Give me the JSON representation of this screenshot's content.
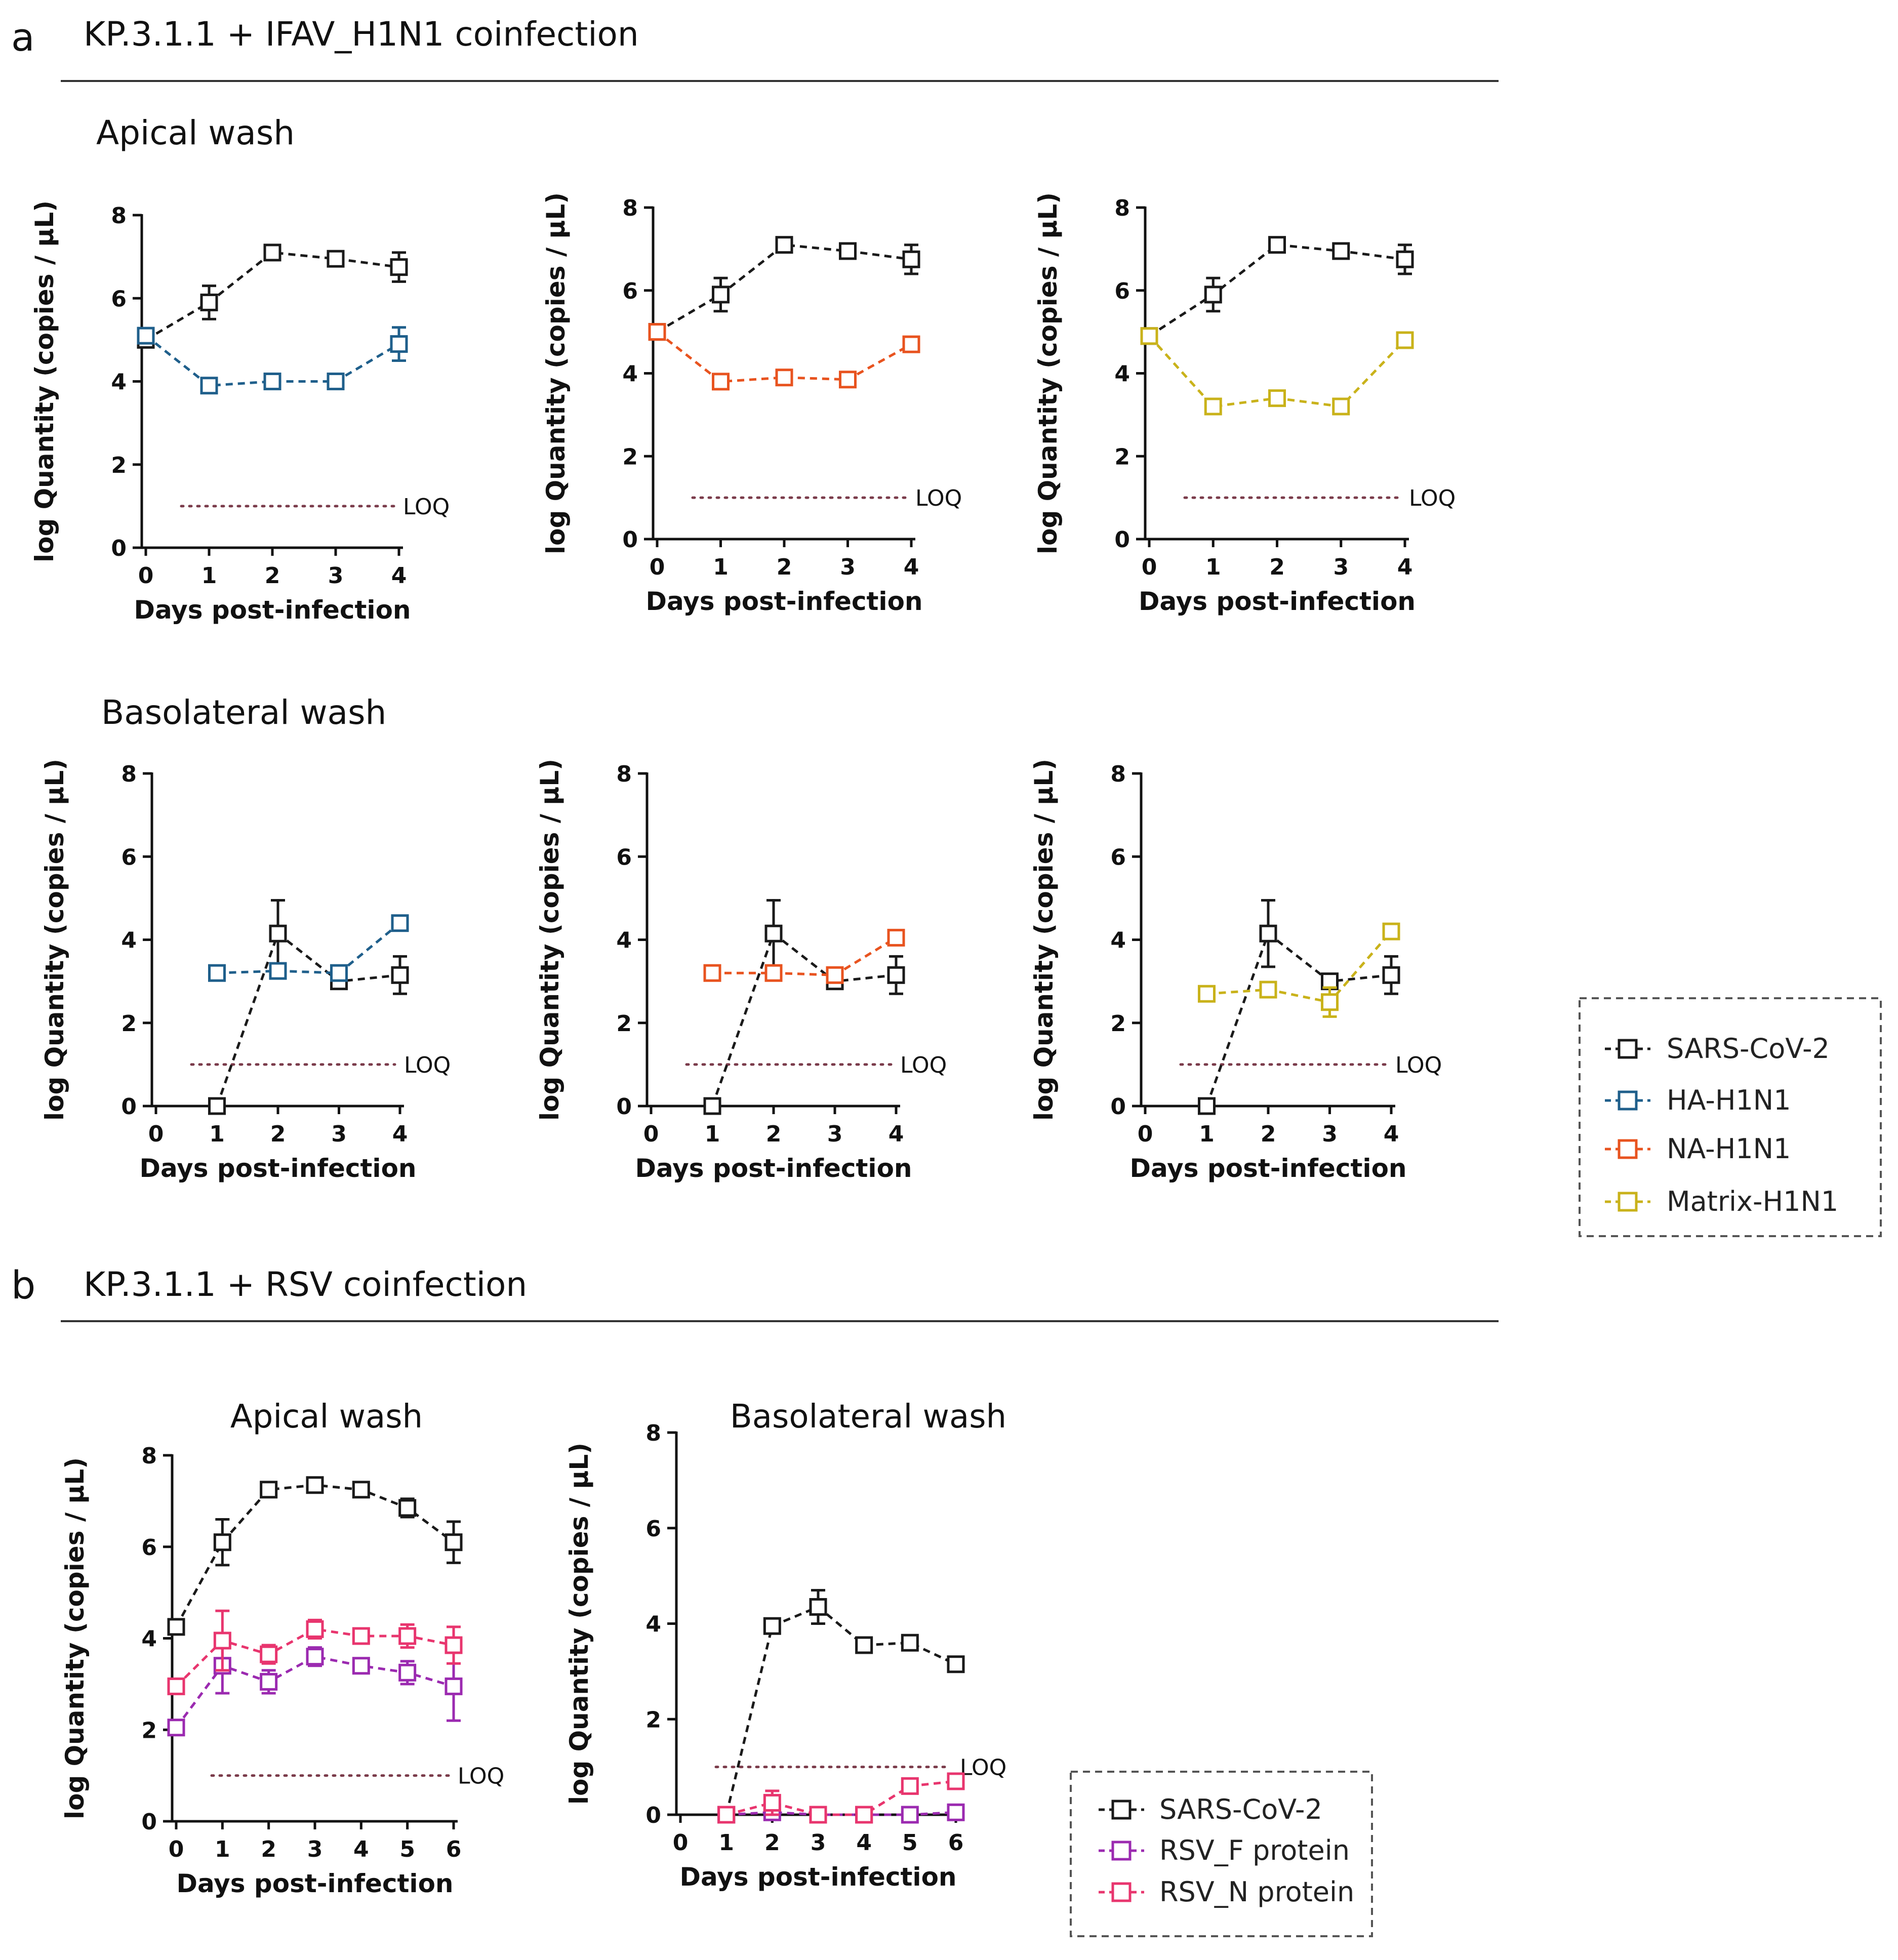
{
  "panels": {
    "a": {
      "letter": "a",
      "title": "KP.3.1.1 + IFAV_H1N1 coinfection",
      "apical_label": "Apical wash",
      "basolateral_label": "Basolateral wash"
    },
    "b": {
      "letter": "b",
      "title": "KP.3.1.1 + RSV coinfection"
    }
  },
  "legends": {
    "a": [
      {
        "label": "SARS-CoV-2",
        "color": "#1a1a1a"
      },
      {
        "label": "HA-H1N1",
        "color": "#1f5f8b"
      },
      {
        "label": "NA-H1N1",
        "color": "#e8531f"
      },
      {
        "label": "Matrix-H1N1",
        "color": "#c9b21a"
      }
    ],
    "b": [
      {
        "label": "SARS-CoV-2",
        "color": "#1a1a1a"
      },
      {
        "label": "RSV_F protein",
        "color": "#9b2ab0"
      },
      {
        "label": "RSV_N protein",
        "color": "#e8356e"
      }
    ]
  },
  "chart_data": [
    {
      "id": "a-apical-ha",
      "type": "line",
      "title": "",
      "xlabel": "Days post-infection",
      "ylabel": "log Quantity (copies / µL)",
      "xlim": [
        0,
        4
      ],
      "ylim": [
        0,
        8
      ],
      "xticks": [
        "0",
        "1",
        "2",
        "3",
        "4"
      ],
      "yticks": [
        "0",
        "2",
        "4",
        "6",
        "8"
      ],
      "loq": 1,
      "loq_label": "LOQ",
      "series": [
        {
          "name": "SARS-CoV-2",
          "color": "#1a1a1a",
          "x": [
            0,
            1,
            2,
            3,
            4
          ],
          "y": [
            5.0,
            5.9,
            7.1,
            6.95,
            6.75
          ],
          "err": [
            0.15,
            0.4,
            0.1,
            0.1,
            0.35
          ]
        },
        {
          "name": "HA-H1N1",
          "color": "#1f5f8b",
          "x": [
            0,
            1,
            2,
            3,
            4
          ],
          "y": [
            5.1,
            3.9,
            4.0,
            4.0,
            4.9
          ],
          "err": [
            0.1,
            0.1,
            0.05,
            0.05,
            0.4
          ]
        }
      ]
    },
    {
      "id": "a-apical-na",
      "type": "line",
      "title": "",
      "xlabel": "Days post-infection",
      "ylabel": "log Quantity (copies / µL)",
      "xlim": [
        0,
        4
      ],
      "ylim": [
        0,
        8
      ],
      "xticks": [
        "0",
        "1",
        "2",
        "3",
        "4"
      ],
      "yticks": [
        "0",
        "2",
        "4",
        "6",
        "8"
      ],
      "loq": 1,
      "loq_label": "LOQ",
      "series": [
        {
          "name": "SARS-CoV-2",
          "color": "#1a1a1a",
          "x": [
            0,
            1,
            2,
            3,
            4
          ],
          "y": [
            5.0,
            5.9,
            7.1,
            6.95,
            6.75
          ],
          "err": [
            0.15,
            0.4,
            0.1,
            0.1,
            0.35
          ]
        },
        {
          "name": "NA-H1N1",
          "color": "#e8531f",
          "x": [
            0,
            1,
            2,
            3,
            4
          ],
          "y": [
            5.0,
            3.8,
            3.9,
            3.85,
            4.7
          ],
          "err": [
            0.1,
            0.1,
            0.05,
            0.05,
            0.1
          ]
        }
      ]
    },
    {
      "id": "a-apical-matrix",
      "type": "line",
      "title": "",
      "xlabel": "Days post-infection",
      "ylabel": "log Quantity (copies / µL)",
      "xlim": [
        0,
        4
      ],
      "ylim": [
        0,
        8
      ],
      "xticks": [
        "0",
        "1",
        "2",
        "3",
        "4"
      ],
      "yticks": [
        "0",
        "2",
        "4",
        "6",
        "8"
      ],
      "loq": 1,
      "loq_label": "LOQ",
      "series": [
        {
          "name": "SARS-CoV-2",
          "color": "#1a1a1a",
          "x": [
            0,
            1,
            2,
            3,
            4
          ],
          "y": [
            4.9,
            5.9,
            7.1,
            6.95,
            6.75
          ],
          "err": [
            0.15,
            0.4,
            0.1,
            0.1,
            0.35
          ]
        },
        {
          "name": "Matrix-H1N1",
          "color": "#c9b21a",
          "x": [
            0,
            1,
            2,
            3,
            4
          ],
          "y": [
            4.9,
            3.2,
            3.4,
            3.2,
            4.8
          ],
          "err": [
            0.1,
            0.1,
            0.1,
            0.05,
            0.1
          ]
        }
      ]
    },
    {
      "id": "a-baso-ha",
      "type": "line",
      "title": "",
      "xlabel": "Days post-infection",
      "ylabel": "log Quantity (copies / µL)",
      "xlim": [
        0,
        4
      ],
      "ylim": [
        0,
        8
      ],
      "xticks": [
        "0",
        "1",
        "2",
        "3",
        "4"
      ],
      "yticks": [
        "0",
        "2",
        "4",
        "6",
        "8"
      ],
      "loq": 1,
      "loq_label": "LOQ",
      "series": [
        {
          "name": "SARS-CoV-2",
          "color": "#1a1a1a",
          "x": [
            1,
            2,
            3,
            4
          ],
          "y": [
            0.0,
            4.15,
            3.0,
            3.15
          ],
          "err": [
            0.05,
            0.8,
            0.1,
            0.45
          ]
        },
        {
          "name": "HA-H1N1",
          "color": "#1f5f8b",
          "x": [
            1,
            2,
            3,
            4
          ],
          "y": [
            3.2,
            3.25,
            3.2,
            4.4
          ],
          "err": [
            0.05,
            0.05,
            0.05,
            0.1
          ]
        }
      ]
    },
    {
      "id": "a-baso-na",
      "type": "line",
      "title": "",
      "xlabel": "Days post-infection",
      "ylabel": "log Quantity (copies / µL)",
      "xlim": [
        0,
        4
      ],
      "ylim": [
        0,
        8
      ],
      "xticks": [
        "0",
        "1",
        "2",
        "3",
        "4"
      ],
      "yticks": [
        "0",
        "2",
        "4",
        "6",
        "8"
      ],
      "loq": 1,
      "loq_label": "LOQ",
      "series": [
        {
          "name": "SARS-CoV-2",
          "color": "#1a1a1a",
          "x": [
            1,
            2,
            3,
            4
          ],
          "y": [
            0.0,
            4.15,
            3.0,
            3.15
          ],
          "err": [
            0.05,
            0.8,
            0.1,
            0.45
          ]
        },
        {
          "name": "NA-H1N1",
          "color": "#e8531f",
          "x": [
            1,
            2,
            3,
            4
          ],
          "y": [
            3.2,
            3.2,
            3.15,
            4.05
          ],
          "err": [
            0.05,
            0.05,
            0.05,
            0.1
          ]
        }
      ]
    },
    {
      "id": "a-baso-matrix",
      "type": "line",
      "title": "",
      "xlabel": "Days post-infection",
      "ylabel": "log Quantity (copies / µL)",
      "xlim": [
        0,
        4
      ],
      "ylim": [
        0,
        8
      ],
      "xticks": [
        "0",
        "1",
        "2",
        "3",
        "4"
      ],
      "yticks": [
        "0",
        "2",
        "4",
        "6",
        "8"
      ],
      "loq": 1,
      "loq_label": "LOQ",
      "series": [
        {
          "name": "SARS-CoV-2",
          "color": "#1a1a1a",
          "x": [
            1,
            2,
            3,
            4
          ],
          "y": [
            0.0,
            4.15,
            3.0,
            3.15
          ],
          "err": [
            0.05,
            0.8,
            0.1,
            0.45
          ]
        },
        {
          "name": "Matrix-H1N1",
          "color": "#c9b21a",
          "x": [
            1,
            2,
            3,
            4
          ],
          "y": [
            2.7,
            2.8,
            2.5,
            4.2
          ],
          "err": [
            0.05,
            0.05,
            0.35,
            0.1
          ]
        }
      ]
    },
    {
      "id": "b-apical",
      "type": "line",
      "title": "Apical wash",
      "xlabel": "Days post-infection",
      "ylabel": "log Quantity (copies / µL)",
      "xlim": [
        0,
        6
      ],
      "ylim": [
        0,
        8
      ],
      "xticks": [
        "0",
        "1",
        "2",
        "3",
        "4",
        "5",
        "6"
      ],
      "yticks": [
        "0",
        "2",
        "4",
        "6",
        "8"
      ],
      "loq": 1,
      "loq_label": "LOQ",
      "series": [
        {
          "name": "SARS-CoV-2",
          "color": "#1a1a1a",
          "x": [
            0,
            1,
            2,
            3,
            4,
            5,
            6
          ],
          "y": [
            4.25,
            6.1,
            7.25,
            7.35,
            7.25,
            6.85,
            6.1
          ],
          "err": [
            0.1,
            0.5,
            0.1,
            0.1,
            0.1,
            0.2,
            0.45
          ]
        },
        {
          "name": "RSV_F protein",
          "color": "#9b2ab0",
          "x": [
            0,
            1,
            2,
            3,
            4,
            5,
            6
          ],
          "y": [
            2.05,
            3.4,
            3.05,
            3.6,
            3.4,
            3.25,
            2.95
          ],
          "err": [
            0.1,
            0.6,
            0.25,
            0.2,
            0.1,
            0.25,
            0.75
          ]
        },
        {
          "name": "RSV_N protein",
          "color": "#e8356e",
          "x": [
            0,
            1,
            2,
            3,
            4,
            5,
            6
          ],
          "y": [
            2.95,
            3.95,
            3.65,
            4.2,
            4.05,
            4.05,
            3.85
          ],
          "err": [
            0.1,
            0.65,
            0.2,
            0.2,
            0.1,
            0.25,
            0.4
          ]
        }
      ]
    },
    {
      "id": "b-baso",
      "type": "line",
      "title": "Basolateral wash",
      "xlabel": "Days post-infection",
      "ylabel": "log Quantity (copies / µL)",
      "xlim": [
        0,
        6
      ],
      "ylim": [
        0,
        8
      ],
      "xticks": [
        "0",
        "1",
        "2",
        "3",
        "4",
        "5",
        "6"
      ],
      "yticks": [
        "0",
        "2",
        "4",
        "6",
        "8"
      ],
      "loq": 1,
      "loq_label": "LOQ",
      "series": [
        {
          "name": "SARS-CoV-2",
          "color": "#1a1a1a",
          "x": [
            1,
            2,
            3,
            4,
            5,
            6
          ],
          "y": [
            0.0,
            3.95,
            4.35,
            3.55,
            3.6,
            3.15
          ],
          "err": [
            0.05,
            0.1,
            0.35,
            0.1,
            0.1,
            0.15
          ]
        },
        {
          "name": "RSV_F protein",
          "color": "#9b2ab0",
          "x": [
            1,
            2,
            3,
            4,
            5,
            6
          ],
          "y": [
            0.0,
            0.05,
            0.0,
            0.0,
            0.0,
            0.05
          ],
          "err": [
            0.02,
            0.1,
            0.02,
            0.02,
            0.02,
            0.05
          ]
        },
        {
          "name": "RSV_N protein",
          "color": "#e8356e",
          "x": [
            1,
            2,
            3,
            4,
            5,
            6
          ],
          "y": [
            0.0,
            0.25,
            0.0,
            0.0,
            0.6,
            0.7
          ],
          "err": [
            0.02,
            0.25,
            0.02,
            0.02,
            0.15,
            0.1
          ]
        }
      ]
    }
  ]
}
